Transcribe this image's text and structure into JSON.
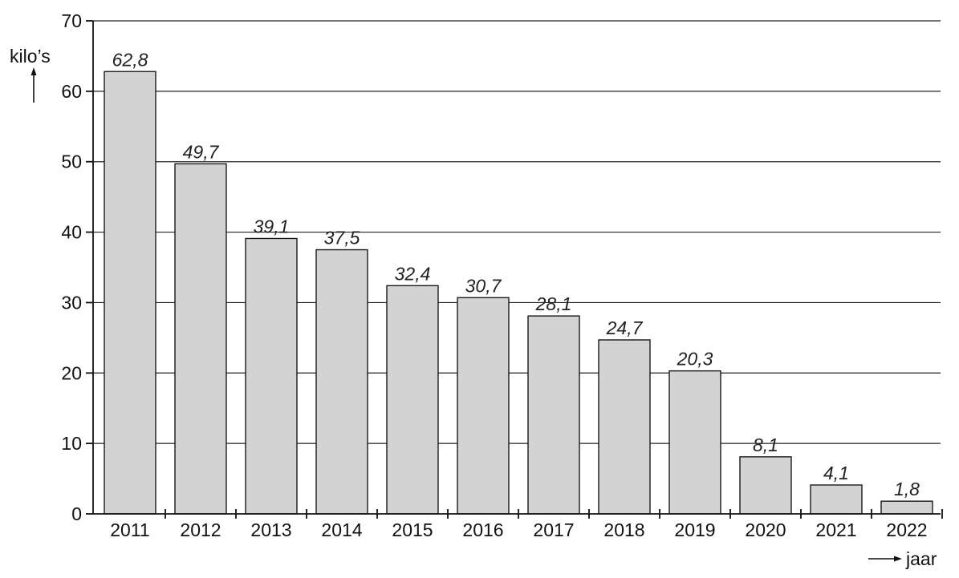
{
  "chart_data": {
    "type": "bar",
    "categories": [
      "2011",
      "2012",
      "2013",
      "2014",
      "2015",
      "2016",
      "2017",
      "2018",
      "2019",
      "2020",
      "2021",
      "2022"
    ],
    "values": [
      62.8,
      49.7,
      39.1,
      37.5,
      32.4,
      30.7,
      28.1,
      24.7,
      20.3,
      8.1,
      4.1,
      1.8
    ],
    "value_labels": [
      "62,8",
      "49,7",
      "39,1",
      "37,5",
      "32,4",
      "30,7",
      "28,1",
      "24,7",
      "20,3",
      "8,1",
      "4,1",
      "1,8"
    ],
    "ylabel": "kilo’s",
    "xlabel": "jaar",
    "ylim": [
      0,
      70
    ],
    "yticks": [
      0,
      10,
      20,
      30,
      40,
      50,
      60,
      70
    ],
    "ytick_labels": [
      "0",
      "10",
      "20",
      "30",
      "40",
      "50",
      "60",
      "70"
    ],
    "grid": true,
    "bar_color": "#d3d3d3"
  }
}
